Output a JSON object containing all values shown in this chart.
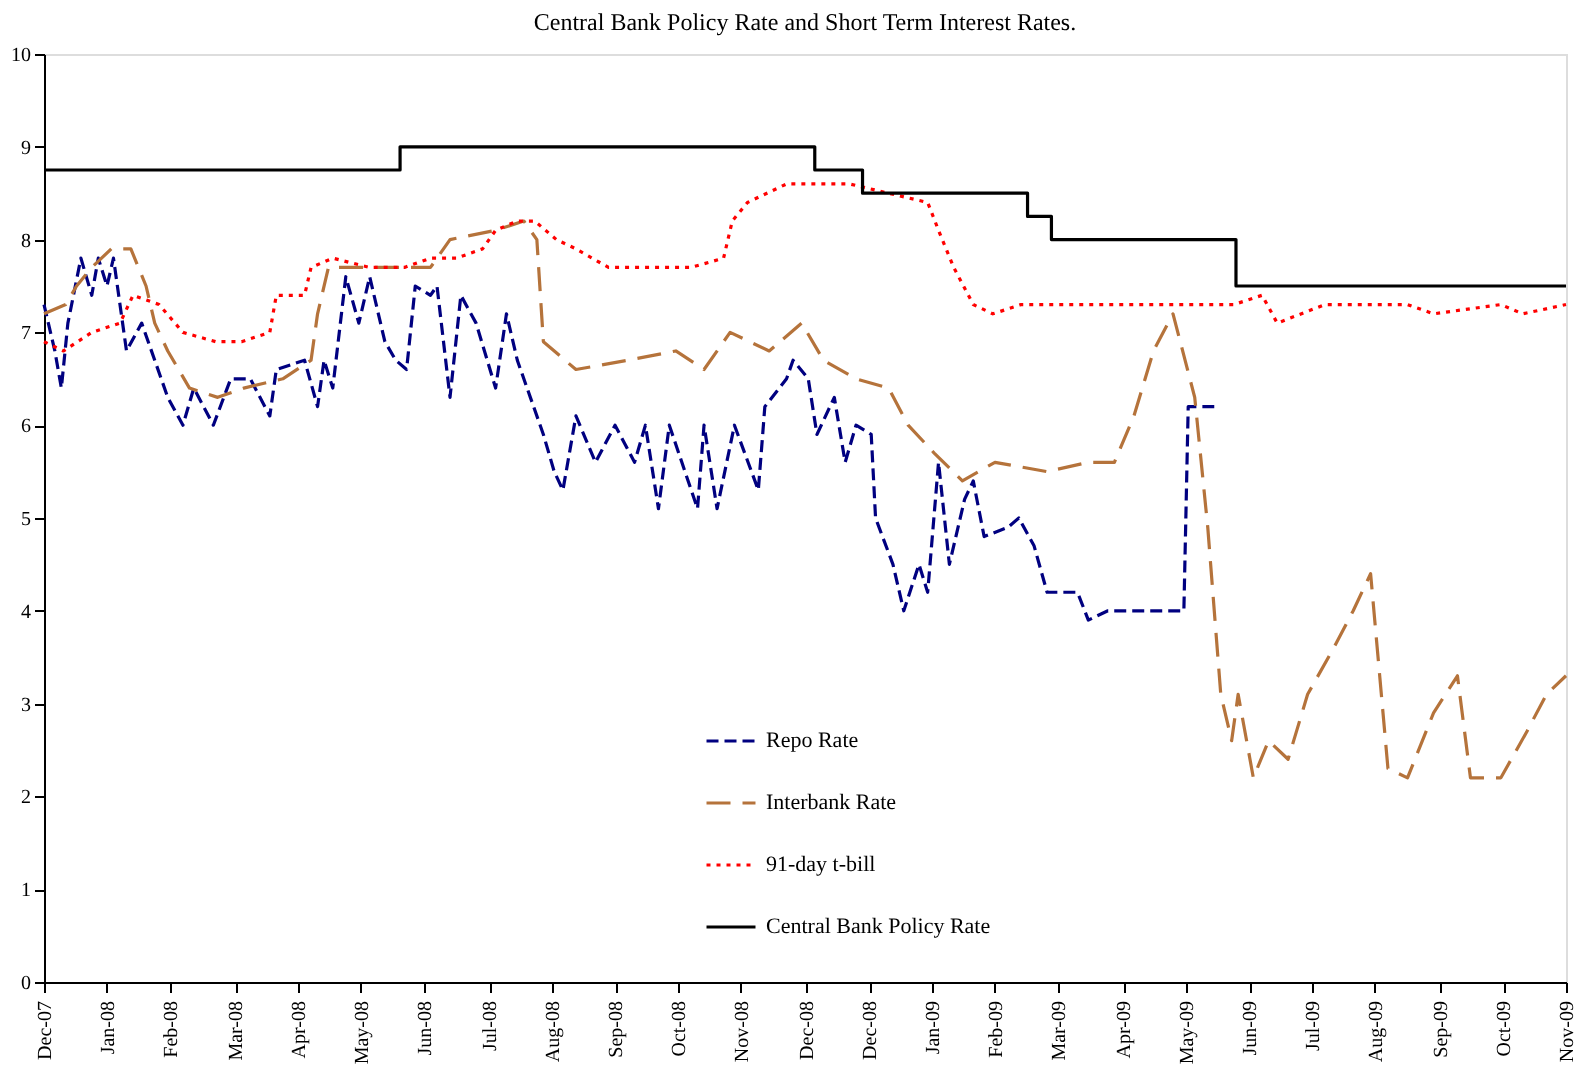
{
  "chart_data": {
    "type": "line",
    "title": "Central Bank Policy Rate and Short Term Interest Rates.",
    "xlim": [
      "2007-12-16",
      "2009-11-16"
    ],
    "xticks": [
      {
        "value": "2007-12-16",
        "label": "Dec-07"
      },
      {
        "value": "2008-01-14",
        "label": "Jan-08"
      },
      {
        "value": "2008-02-12",
        "label": "Feb-08"
      },
      {
        "value": "2008-03-13",
        "label": "Mar-08"
      },
      {
        "value": "2008-04-11",
        "label": "Apr-08"
      },
      {
        "value": "2008-05-10",
        "label": "May-08"
      },
      {
        "value": "2008-06-08",
        "label": "Jun-08"
      },
      {
        "value": "2008-07-08",
        "label": "Jul-08"
      },
      {
        "value": "2008-08-06",
        "label": "Aug-08"
      },
      {
        "value": "2008-09-04",
        "label": "Sep-08"
      },
      {
        "value": "2008-10-03",
        "label": "Oct-08"
      },
      {
        "value": "2008-11-01",
        "label": "Nov-08"
      },
      {
        "value": "2008-12-01",
        "label": "Dec-08"
      },
      {
        "value": "2008-12-30",
        "label": "Dec-08"
      },
      {
        "value": "2009-01-28",
        "label": "Jan-09"
      },
      {
        "value": "2009-02-26",
        "label": "Feb-09"
      },
      {
        "value": "2009-03-27",
        "label": "Mar-09"
      },
      {
        "value": "2009-04-26",
        "label": "Apr-09"
      },
      {
        "value": "2009-05-25",
        "label": "May-09"
      },
      {
        "value": "2009-06-23",
        "label": "Jun-09"
      },
      {
        "value": "2009-07-22",
        "label": "Jul-09"
      },
      {
        "value": "2009-08-20",
        "label": "Aug-09"
      },
      {
        "value": "2009-09-19",
        "label": "Sep-09"
      },
      {
        "value": "2009-10-18",
        "label": "Oct-09"
      },
      {
        "value": "2009-11-16",
        "label": "Nov-09"
      }
    ],
    "ylim": [
      0,
      10
    ],
    "yticks": [
      0,
      1,
      2,
      3,
      4,
      5,
      6,
      7,
      8,
      9,
      10
    ],
    "grid": false,
    "legend": "bottom",
    "series": [
      {
        "name": "Repo Rate",
        "type": "line",
        "line_style": "dashed",
        "color": "#000080",
        "x": [
          "2007-12-16",
          "2007-12-21",
          "2007-12-24",
          "2007-12-27",
          "2008-01-02",
          "2008-01-07",
          "2008-01-10",
          "2008-01-14",
          "2008-01-17",
          "2008-01-23",
          "2008-01-30",
          "2008-02-05",
          "2008-02-11",
          "2008-02-18",
          "2008-02-23",
          "2008-03-03",
          "2008-03-11",
          "2008-03-20",
          "2008-03-29",
          "2008-04-01",
          "2008-04-14",
          "2008-04-20",
          "2008-04-23",
          "2008-04-27",
          "2008-05-03",
          "2008-05-09",
          "2008-05-14",
          "2008-05-21",
          "2008-05-26",
          "2008-05-31",
          "2008-06-04",
          "2008-06-11",
          "2008-06-14",
          "2008-06-20",
          "2008-06-25",
          "2008-07-02",
          "2008-07-11",
          "2008-07-16",
          "2008-07-21",
          "2008-07-27",
          "2008-08-02",
          "2008-08-07",
          "2008-08-11",
          "2008-08-17",
          "2008-08-26",
          "2008-09-04",
          "2008-09-13",
          "2008-09-18",
          "2008-09-24",
          "2008-09-29",
          "2008-10-12",
          "2008-10-15",
          "2008-10-21",
          "2008-10-29",
          "2008-11-09",
          "2008-11-12",
          "2008-11-22",
          "2008-11-25",
          "2008-12-02",
          "2008-12-06",
          "2008-12-14",
          "2008-12-19",
          "2008-12-24",
          "2008-12-31",
          "2009-01-02",
          "2009-01-10",
          "2009-01-15",
          "2009-01-22",
          "2009-01-26",
          "2009-01-31",
          "2009-02-05",
          "2009-02-12",
          "2009-02-16",
          "2009-02-21",
          "2009-03-04",
          "2009-03-09",
          "2009-03-16",
          "2009-03-22",
          "2009-04-05",
          "2009-04-10",
          "2009-04-19",
          "2009-05-24",
          "2009-05-26",
          "2009-06-07"
        ],
        "values": [
          7.3,
          6.8,
          6.4,
          7.1,
          7.8,
          7.4,
          7.8,
          7.5,
          7.8,
          6.8,
          7.1,
          6.7,
          6.3,
          6.0,
          6.4,
          6.0,
          6.5,
          6.5,
          6.1,
          6.6,
          6.7,
          6.2,
          6.7,
          6.4,
          7.6,
          7.1,
          7.6,
          6.9,
          6.7,
          6.6,
          7.5,
          7.4,
          7.5,
          6.3,
          7.4,
          7.1,
          6.4,
          7.2,
          6.7,
          6.3,
          5.9,
          5.5,
          5.3,
          6.1,
          5.6,
          6.0,
          5.6,
          6.0,
          5.1,
          6.0,
          5.1,
          6.0,
          5.1,
          6.0,
          5.3,
          6.2,
          6.5,
          6.7,
          6.5,
          5.9,
          6.3,
          5.6,
          6.0,
          5.9,
          5.0,
          4.5,
          4.0,
          4.5,
          4.2,
          5.6,
          4.5,
          5.2,
          5.4,
          4.8,
          4.9,
          5.0,
          4.7,
          4.2,
          4.2,
          3.9,
          4.0,
          4.0,
          6.2,
          6.2
        ]
      },
      {
        "name": "Interbank Rate",
        "type": "line",
        "line_style": "longdash",
        "color": "#b5733b",
        "x": [
          "2007-12-16",
          "2007-12-26",
          "2007-12-31",
          "2008-01-07",
          "2008-01-16",
          "2008-01-25",
          "2008-02-01",
          "2008-02-05",
          "2008-02-11",
          "2008-02-21",
          "2008-03-05",
          "2008-03-17",
          "2008-04-04",
          "2008-04-17",
          "2008-04-20",
          "2008-04-25",
          "2008-05-11",
          "2008-05-30",
          "2008-06-11",
          "2008-06-20",
          "2008-07-11",
          "2008-07-24",
          "2008-07-30",
          "2008-08-02",
          "2008-08-17",
          "2008-09-10",
          "2008-10-02",
          "2008-10-15",
          "2008-10-27",
          "2008-11-14",
          "2008-11-29",
          "2008-12-09",
          "2008-12-24",
          "2009-01-08",
          "2009-01-17",
          "2009-01-29",
          "2009-02-11",
          "2009-02-26",
          "2009-03-22",
          "2009-04-10",
          "2009-04-22",
          "2009-05-01",
          "2009-05-10",
          "2009-05-19",
          "2009-05-29",
          "2009-06-04",
          "2009-06-10",
          "2009-06-15",
          "2009-06-18",
          "2009-06-25",
          "2009-07-02",
          "2009-07-11",
          "2009-07-20",
          "2009-08-01",
          "2009-08-10",
          "2009-08-18",
          "2009-08-26",
          "2009-09-04",
          "2009-09-16",
          "2009-09-27",
          "2009-10-03",
          "2009-10-17",
          "2009-10-29",
          "2009-11-07",
          "2009-11-16"
        ],
        "values": [
          7.2,
          7.3,
          7.5,
          7.7,
          7.9,
          7.9,
          7.5,
          7.1,
          6.8,
          6.4,
          6.3,
          6.4,
          6.5,
          6.7,
          7.2,
          7.7,
          7.7,
          7.7,
          7.7,
          8.0,
          8.1,
          8.2,
          8.0,
          6.9,
          6.6,
          6.7,
          6.8,
          6.6,
          7.0,
          6.8,
          7.1,
          6.7,
          6.5,
          6.4,
          6.0,
          5.7,
          5.4,
          5.6,
          5.5,
          5.6,
          5.6,
          6.1,
          6.8,
          7.2,
          6.3,
          4.9,
          3.1,
          2.6,
          3.1,
          2.2,
          2.6,
          2.4,
          3.1,
          3.6,
          4.0,
          4.4,
          2.3,
          2.2,
          2.9,
          3.3,
          2.2,
          2.2,
          2.7,
          3.1,
          3.3
        ]
      },
      {
        "name": "91-day t-bill",
        "type": "line",
        "line_style": "dotted",
        "color": "#ff0000",
        "x": [
          "2007-12-16",
          "2007-12-25",
          "2008-01-07",
          "2008-01-20",
          "2008-01-26",
          "2008-02-07",
          "2008-02-18",
          "2008-03-04",
          "2008-03-16",
          "2008-03-29",
          "2008-04-01",
          "2008-04-14",
          "2008-04-17",
          "2008-04-27",
          "2008-05-14",
          "2008-05-30",
          "2008-06-11",
          "2008-06-23",
          "2008-07-05",
          "2008-07-11",
          "2008-07-21",
          "2008-07-29",
          "2008-08-08",
          "2008-08-17",
          "2008-09-01",
          "2008-09-18",
          "2008-10-09",
          "2008-10-24",
          "2008-10-28",
          "2008-11-04",
          "2008-11-22",
          "2008-12-02",
          "2008-12-21",
          "2009-01-08",
          "2009-01-26",
          "2009-01-31",
          "2009-02-07",
          "2009-02-16",
          "2009-02-25",
          "2009-03-10",
          "2009-06-16",
          "2009-06-29",
          "2009-07-06",
          "2009-07-28",
          "2009-09-04",
          "2009-09-16",
          "2009-10-17",
          "2009-10-27",
          "2009-11-16"
        ],
        "values": [
          6.9,
          6.8,
          7.0,
          7.1,
          7.4,
          7.3,
          7.0,
          6.9,
          6.9,
          7.0,
          7.4,
          7.4,
          7.7,
          7.8,
          7.7,
          7.7,
          7.8,
          7.8,
          7.9,
          8.1,
          8.2,
          8.2,
          8.0,
          7.9,
          7.7,
          7.7,
          7.7,
          7.8,
          8.2,
          8.4,
          8.6,
          8.6,
          8.6,
          8.5,
          8.4,
          8.1,
          7.7,
          7.3,
          7.2,
          7.3,
          7.3,
          7.4,
          7.1,
          7.3,
          7.3,
          7.2,
          7.3,
          7.2,
          7.3
        ]
      },
      {
        "name": "Central Bank Policy Rate",
        "type": "step",
        "line_style": "solid",
        "color": "#000000",
        "x": [
          "2007-12-16",
          "2008-05-28",
          "2008-12-05",
          "2008-12-27",
          "2009-03-13",
          "2009-03-24",
          "2009-06-17",
          "2009-11-16"
        ],
        "values": [
          8.75,
          9.0,
          8.75,
          8.5,
          8.25,
          8.0,
          7.5,
          7.5
        ]
      }
    ]
  }
}
